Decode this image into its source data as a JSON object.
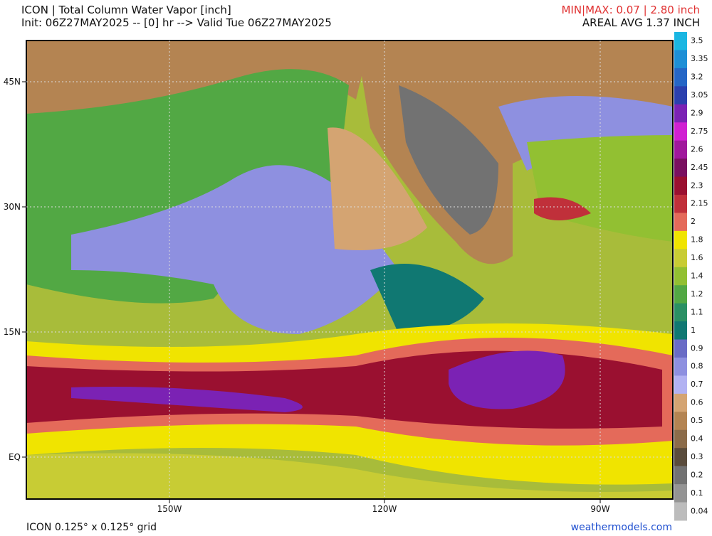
{
  "header": {
    "title": "ICON | Total Column Water Vapor [inch]",
    "init": "Init: 06Z27MAY2025 -- [0] hr --> Valid Tue 06Z27MAY2025",
    "minmax": "MIN|MAX: 0.07 | 2.80 inch",
    "areal_avg": "AREAL AVG 1.37 INCH"
  },
  "map": {
    "lat_labels": [
      "45N",
      "30N",
      "15N",
      "EQ"
    ],
    "lon_labels": [
      "150W",
      "120W",
      "90W"
    ]
  },
  "colorbar": {
    "levels": [
      {
        "value": 3.5,
        "color": "#1ab6e2"
      },
      {
        "value": 3.35,
        "color": "#1e8fd6"
      },
      {
        "value": 3.2,
        "color": "#2566c6"
      },
      {
        "value": 3.05,
        "color": "#2b40ae"
      },
      {
        "value": 2.9,
        "color": "#7b22b4"
      },
      {
        "value": 2.75,
        "color": "#d020d2"
      },
      {
        "value": 2.6,
        "color": "#a0189c"
      },
      {
        "value": 2.45,
        "color": "#7a1060"
      },
      {
        "value": 2.3,
        "color": "#9a1030"
      },
      {
        "value": 2.15,
        "color": "#c0303a"
      },
      {
        "value": 2,
        "color": "#e46a5a"
      },
      {
        "value": 1.8,
        "color": "#f0e400"
      },
      {
        "value": 1.6,
        "color": "#c8cc34"
      },
      {
        "value": 1.4,
        "color": "#92c032"
      },
      {
        "value": 1.2,
        "color": "#52a844"
      },
      {
        "value": 1.1,
        "color": "#2a9064"
      },
      {
        "value": 1,
        "color": "#107872"
      },
      {
        "value": 0.9,
        "color": "#6a6cc6"
      },
      {
        "value": 0.8,
        "color": "#8e90e0"
      },
      {
        "value": 0.7,
        "color": "#b2b2f2"
      },
      {
        "value": 0.6,
        "color": "#d4a472"
      },
      {
        "value": 0.5,
        "color": "#b48452"
      },
      {
        "value": 0.4,
        "color": "#8c6c4a"
      },
      {
        "value": 0.3,
        "color": "#5a4c3c"
      },
      {
        "value": 0.2,
        "color": "#727272"
      },
      {
        "value": 0.1,
        "color": "#949494"
      },
      {
        "value": 0.04,
        "color": "#bcbcbc"
      }
    ]
  },
  "footer": {
    "grid": "ICON 0.125° x 0.125° grid",
    "site": "weathermodels.com"
  }
}
